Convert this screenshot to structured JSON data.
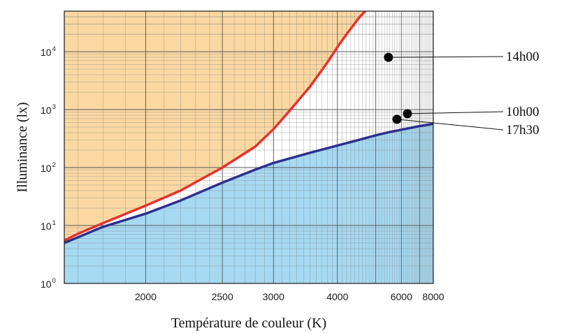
{
  "chart_data": {
    "type": "line",
    "title": "",
    "xlabel": "Température de couleur (K)",
    "ylabel": "Illuminance (lx)",
    "x_scale": "reciprocal",
    "y_scale": "log",
    "xlim": [
      1650,
      8000
    ],
    "ylim": [
      1,
      50000
    ],
    "xticks": [
      {
        "value": 2000,
        "label": "2000"
      },
      {
        "value": 2500,
        "label": "2500"
      },
      {
        "value": 3000,
        "label": "3000"
      },
      {
        "value": 4000,
        "label": "4000"
      },
      {
        "value": 6000,
        "label": "6000"
      },
      {
        "value": 8000,
        "label": "8000"
      }
    ],
    "yticks": [
      {
        "value": 1,
        "base": "10",
        "exp": "0"
      },
      {
        "value": 10,
        "base": "10",
        "exp": "1"
      },
      {
        "value": 100,
        "base": "10",
        "exp": "2"
      },
      {
        "value": 1000,
        "base": "10",
        "exp": "3"
      },
      {
        "value": 10000,
        "base": "10",
        "exp": "4"
      }
    ],
    "grid": true,
    "series": [
      {
        "color": "#e8322b",
        "x": [
          1650,
          1700,
          1800,
          2000,
          2200,
          2500,
          2800,
          3000,
          3200,
          3500,
          3800,
          4000,
          4200,
          4500,
          4700
        ],
        "y": [
          5.5,
          7.2,
          11,
          22,
          40,
          100,
          230,
          460,
          950,
          2500,
          6500,
          12000,
          20000,
          38000,
          52000
        ]
      },
      {
        "color": "#2e2f8e",
        "x": [
          1650,
          1800,
          2000,
          2200,
          2500,
          2800,
          3000,
          3500,
          4000,
          4500,
          5000,
          5500,
          6000,
          7000,
          8000
        ],
        "y": [
          5.0,
          9.5,
          16,
          27,
          55,
          92,
          120,
          180,
          240,
          300,
          360,
          410,
          450,
          520,
          570
        ]
      }
    ],
    "points": [
      {
        "label": "14h00",
        "x": 5450,
        "y": 8000
      },
      {
        "label": "10h00",
        "x": 6300,
        "y": 850
      },
      {
        "label": "17h30",
        "x": 5800,
        "y": 680
      }
    ],
    "regions": {
      "upper_fill": "#fbd8a2",
      "lower_fill": "#a6d9f2"
    }
  }
}
